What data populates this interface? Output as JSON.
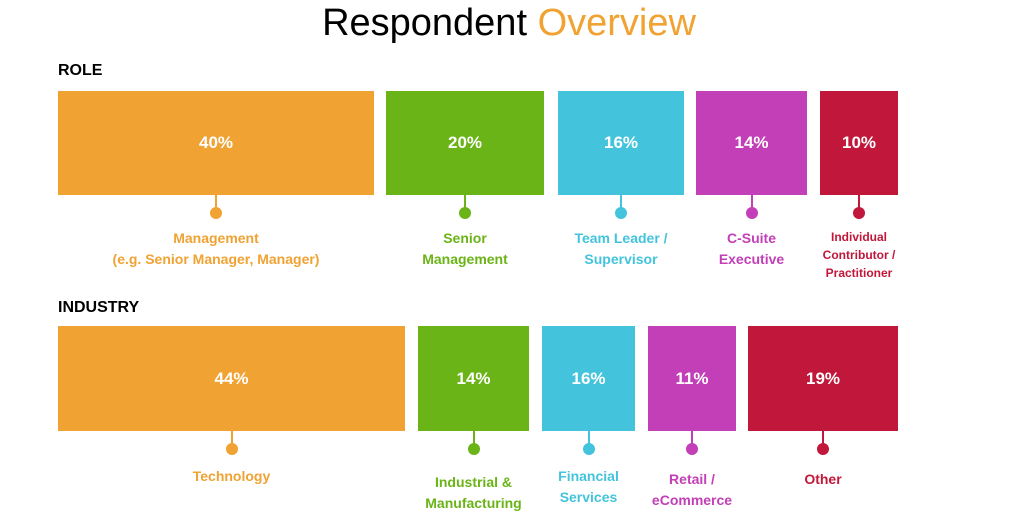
{
  "title": {
    "part1": "Respondent",
    "part2": "Overview",
    "accent_color": "#f0a232"
  },
  "chart_data": [
    {
      "type": "bar",
      "section_label": "ROLE",
      "categories": [
        "Management\n(e.g. Senior Manager, Manager)",
        "Senior\nManagement",
        "Team Leader /\nSupervisor",
        "C-Suite\nExecutive",
        "Individual\nContributor /\nPractitioner"
      ],
      "values": [
        40,
        20,
        16,
        14,
        10
      ],
      "labels": [
        "40%",
        "20%",
        "16%",
        "14%",
        "10%"
      ],
      "colors": [
        "#f0a232",
        "#6ab417",
        "#44c4dc",
        "#c23fb7",
        "#c0173a"
      ]
    },
    {
      "type": "bar",
      "section_label": "INDUSTRY",
      "categories": [
        "Technology",
        "Industrial &\nManufacturing",
        "Financial\nServices",
        "Retail /\neCommerce",
        "Other"
      ],
      "values": [
        44,
        14,
        16,
        11,
        19
      ],
      "labels": [
        "44%",
        "14%",
        "16%",
        "11%",
        "19%"
      ],
      "colors": [
        "#f0a232",
        "#6ab417",
        "#44c4dc",
        "#c23fb7",
        "#c0173a"
      ]
    }
  ]
}
